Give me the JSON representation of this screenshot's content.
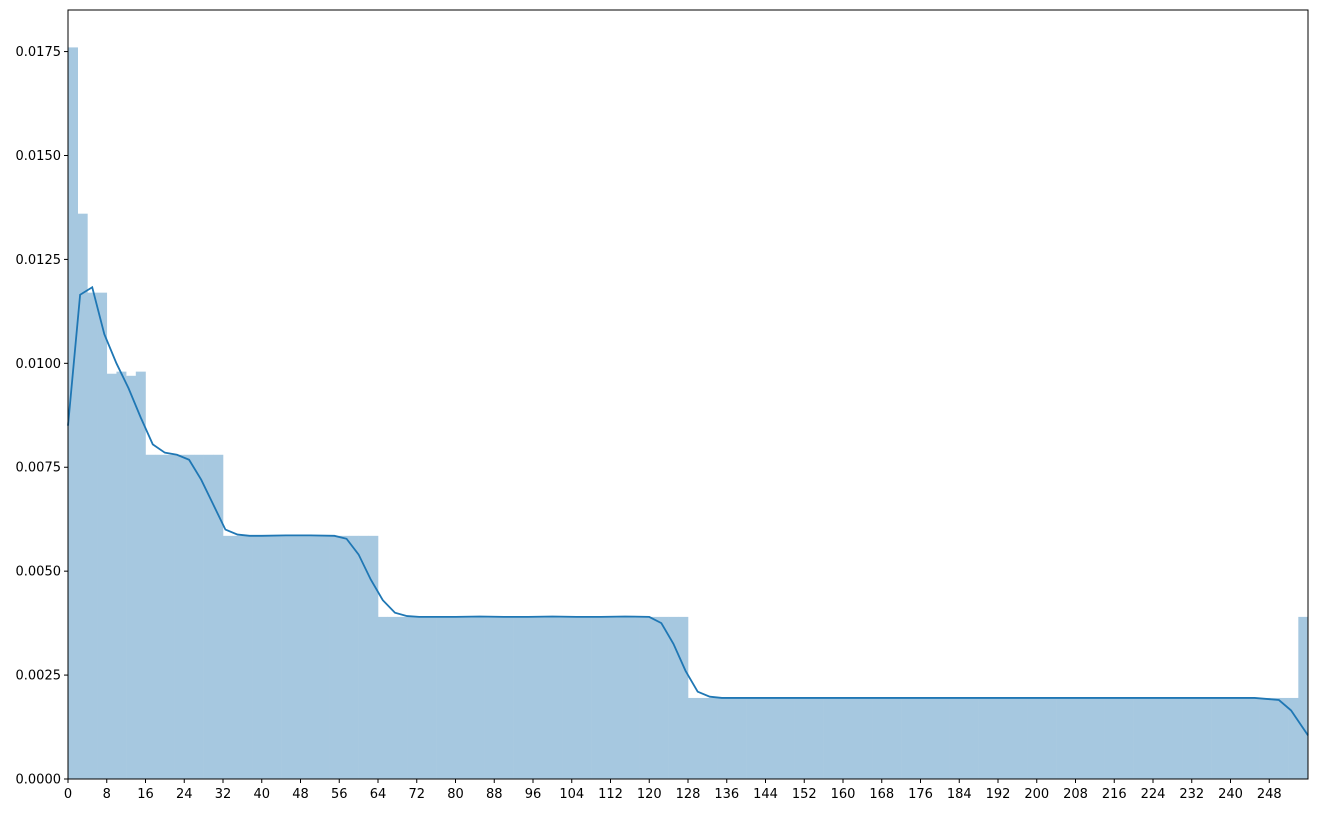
{
  "chart_data": {
    "type": "bar",
    "title": "",
    "xlabel": "",
    "ylabel": "",
    "xlim": [
      0,
      256
    ],
    "ylim": [
      0,
      0.0185
    ],
    "x_ticks": [
      "0",
      "8",
      "16",
      "24",
      "32",
      "40",
      "48",
      "56",
      "64",
      "72",
      "80",
      "88",
      "96",
      "104",
      "112",
      "120",
      "128",
      "136",
      "144",
      "152",
      "160",
      "168",
      "176",
      "184",
      "192",
      "200",
      "208",
      "216",
      "224",
      "232",
      "240",
      "248"
    ],
    "y_ticks": [
      "0.0000",
      "0.0025",
      "0.0050",
      "0.0075",
      "0.0100",
      "0.0125",
      "0.0150",
      "0.0175"
    ],
    "bar_color": "#a6c8e0",
    "line_color": "#1f77b4",
    "histogram": {
      "bin_width": 2,
      "bin_starts": [
        0,
        2,
        4,
        6,
        8,
        10,
        12,
        14,
        16,
        18,
        20,
        22,
        24,
        26,
        28,
        30,
        32,
        34,
        36,
        38,
        40,
        42,
        44,
        46,
        48,
        50,
        52,
        54,
        56,
        58,
        60,
        62,
        64,
        66,
        68,
        70,
        72,
        74,
        76,
        78,
        80,
        82,
        84,
        86,
        88,
        90,
        92,
        94,
        96,
        98,
        100,
        102,
        104,
        106,
        108,
        110,
        112,
        114,
        116,
        118,
        120,
        122,
        124,
        126,
        128,
        130,
        132,
        134,
        136,
        138,
        140,
        142,
        144,
        146,
        148,
        150,
        152,
        154,
        156,
        158,
        160,
        162,
        164,
        166,
        168,
        170,
        172,
        174,
        176,
        178,
        180,
        182,
        184,
        186,
        188,
        190,
        192,
        194,
        196,
        198,
        200,
        202,
        204,
        206,
        208,
        210,
        212,
        214,
        216,
        218,
        220,
        222,
        224,
        226,
        228,
        230,
        232,
        234,
        236,
        238,
        240,
        242,
        244,
        246,
        248,
        250,
        252,
        254
      ],
      "density": [
        0.0176,
        0.0136,
        0.0117,
        0.0117,
        0.00975,
        0.0098,
        0.0097,
        0.0098,
        0.0078,
        0.0078,
        0.0078,
        0.0078,
        0.0078,
        0.0078,
        0.0078,
        0.0078,
        0.00585,
        0.00585,
        0.00585,
        0.00585,
        0.00585,
        0.00585,
        0.00585,
        0.00585,
        0.00585,
        0.00585,
        0.00585,
        0.00585,
        0.00585,
        0.00585,
        0.00585,
        0.00585,
        0.0039,
        0.0039,
        0.0039,
        0.0039,
        0.0039,
        0.0039,
        0.0039,
        0.0039,
        0.0039,
        0.0039,
        0.0039,
        0.0039,
        0.0039,
        0.0039,
        0.0039,
        0.0039,
        0.0039,
        0.0039,
        0.0039,
        0.0039,
        0.0039,
        0.0039,
        0.0039,
        0.0039,
        0.0039,
        0.0039,
        0.0039,
        0.0039,
        0.0039,
        0.0039,
        0.0039,
        0.0039,
        0.00195,
        0.00195,
        0.00195,
        0.00195,
        0.00195,
        0.00195,
        0.00195,
        0.00195,
        0.00195,
        0.00195,
        0.00195,
        0.00195,
        0.00195,
        0.00195,
        0.00195,
        0.00195,
        0.00195,
        0.00195,
        0.00195,
        0.00195,
        0.00195,
        0.00195,
        0.00195,
        0.00195,
        0.00195,
        0.00195,
        0.00195,
        0.00195,
        0.00195,
        0.00195,
        0.00195,
        0.00195,
        0.00195,
        0.00195,
        0.00195,
        0.00195,
        0.00195,
        0.00195,
        0.00195,
        0.00195,
        0.00195,
        0.00195,
        0.00195,
        0.00195,
        0.00195,
        0.00195,
        0.00195,
        0.00195,
        0.00195,
        0.00195,
        0.00195,
        0.00195,
        0.00195,
        0.00195,
        0.00195,
        0.00195,
        0.00195,
        0.00195,
        0.00195,
        0.00195,
        0.00195,
        0.00195,
        0.00195,
        0.0039
      ]
    },
    "kde": {
      "x": [
        0,
        2.5,
        5,
        7.5,
        10,
        12.5,
        15,
        17.5,
        20,
        22.5,
        25,
        27.5,
        30,
        32.5,
        35,
        37.5,
        40,
        45,
        50,
        55,
        57.5,
        60,
        62.5,
        65,
        67.5,
        70,
        72.5,
        75,
        80,
        85,
        90,
        95,
        100,
        105,
        110,
        115,
        120,
        122.5,
        125,
        127.5,
        130,
        132.5,
        135,
        140,
        150,
        160,
        170,
        180,
        190,
        200,
        210,
        220,
        230,
        240,
        245,
        250,
        252.5,
        256
      ],
      "y": [
        0.0085,
        0.01165,
        0.01183,
        0.0107,
        0.01,
        0.0094,
        0.0087,
        0.00805,
        0.00785,
        0.0078,
        0.00768,
        0.0072,
        0.0066,
        0.006,
        0.00588,
        0.00585,
        0.00585,
        0.00586,
        0.00586,
        0.00585,
        0.00578,
        0.0054,
        0.0048,
        0.0043,
        0.004,
        0.00392,
        0.0039,
        0.0039,
        0.0039,
        0.00391,
        0.0039,
        0.0039,
        0.00391,
        0.0039,
        0.0039,
        0.00391,
        0.0039,
        0.00375,
        0.00325,
        0.0026,
        0.0021,
        0.00198,
        0.00195,
        0.00195,
        0.00195,
        0.00195,
        0.00195,
        0.00195,
        0.00195,
        0.00195,
        0.00195,
        0.00195,
        0.00195,
        0.00195,
        0.00195,
        0.0019,
        0.00165,
        0.00105
      ]
    }
  }
}
